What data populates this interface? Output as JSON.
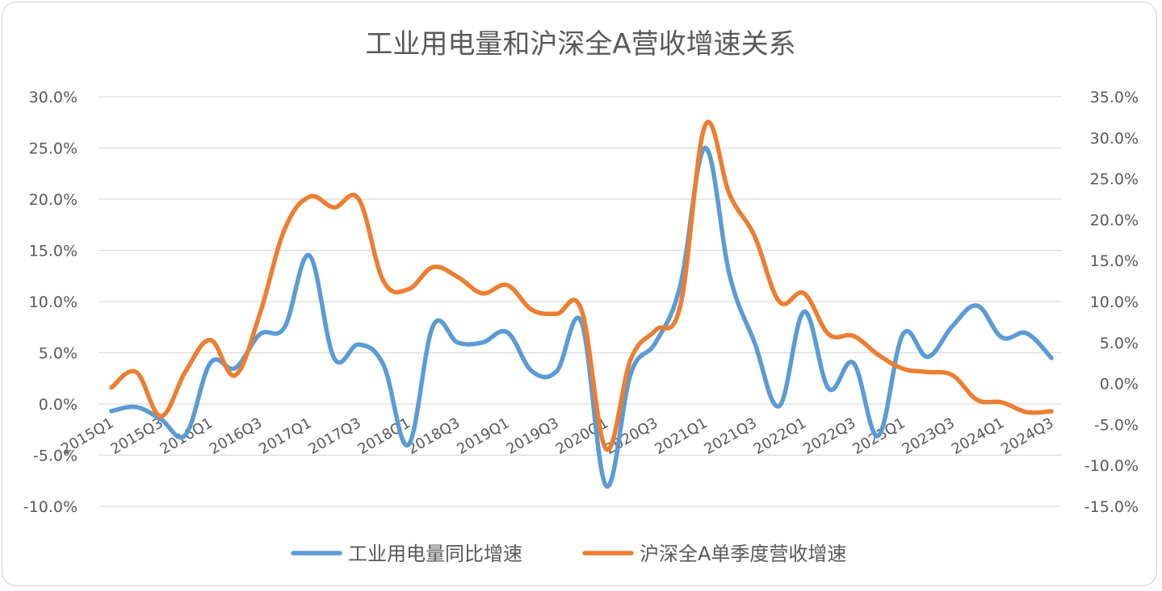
{
  "chart_data": {
    "type": "line",
    "title": "工业用电量和沪深全A营收增速关系",
    "categories": [
      "2015Q1",
      "2015Q2",
      "2015Q3",
      "2015Q4",
      "2016Q1",
      "2016Q2",
      "2016Q3",
      "2016Q4",
      "2017Q1",
      "2017Q2",
      "2017Q3",
      "2017Q4",
      "2018Q1",
      "2018Q2",
      "2018Q3",
      "2018Q4",
      "2019Q1",
      "2019Q2",
      "2019Q3",
      "2019Q4",
      "2020Q1",
      "2020Q2",
      "2020Q3",
      "2020Q4",
      "2021Q1",
      "2021Q2",
      "2021Q3",
      "2021Q4",
      "2022Q1",
      "2022Q2",
      "2022Q3",
      "2022Q4",
      "2023Q1",
      "2023Q2",
      "2023Q3",
      "2023Q4",
      "2024Q1",
      "2024Q2",
      "2024Q3"
    ],
    "x_tick_labels": [
      "2015Q1",
      "2015Q3",
      "2016Q1",
      "2016Q3",
      "2017Q1",
      "2017Q3",
      "2018Q1",
      "2018Q3",
      "2019Q1",
      "2019Q3",
      "2020Q1",
      "2020Q3",
      "2021Q1",
      "2021Q3",
      "2022Q1",
      "2022Q3",
      "2023Q1",
      "2023Q3",
      "2024Q1",
      "2024Q3"
    ],
    "series": [
      {
        "name": "工业用电量同比增速",
        "axis": "left",
        "color": "#5b9bd5",
        "values": [
          -0.7,
          -0.3,
          -1.5,
          -3.0,
          4.0,
          3.5,
          6.8,
          7.5,
          14.5,
          4.5,
          5.8,
          3.8,
          -4.0,
          7.6,
          6.0,
          6.0,
          7.0,
          3.2,
          3.2,
          8.0,
          -8.0,
          3.0,
          6.0,
          11.6,
          25.0,
          12.5,
          6.0,
          -0.2,
          9.0,
          1.5,
          4.0,
          -3.1,
          6.8,
          4.6,
          7.6,
          9.6,
          6.5,
          6.9,
          4.5
        ]
      },
      {
        "name": "沪深全A单季度营收增速",
        "axis": "right",
        "color": "#ed7d31",
        "values": [
          -0.5,
          1.4,
          -4.0,
          1.5,
          5.3,
          1.0,
          8.5,
          18.8,
          22.8,
          21.5,
          22.5,
          12.5,
          11.5,
          14.2,
          13.0,
          11.0,
          12.0,
          9.0,
          8.5,
          9.0,
          -8.0,
          3.0,
          6.5,
          9.5,
          31.5,
          23.0,
          18.0,
          10.0,
          11.0,
          6.0,
          5.8,
          3.5,
          1.8,
          1.4,
          1.0,
          -2.0,
          -2.3,
          -3.5,
          -3.4
        ]
      }
    ],
    "y_left": {
      "min": -10,
      "max": 30,
      "step": 5,
      "tick_labels": [
        "-10.0%",
        "-5.0%",
        "0.0%",
        "5.0%",
        "10.0%",
        "15.0%",
        "20.0%",
        "25.0%",
        "30.0%"
      ]
    },
    "y_right": {
      "min": -15,
      "max": 35,
      "step": 5,
      "tick_labels": [
        "-15.0%",
        "-10.0%",
        "-5.0%",
        "0.0%",
        "5.0%",
        "10.0%",
        "15.0%",
        "20.0%",
        "25.0%",
        "30.0%",
        "35.0%"
      ]
    },
    "grid": true,
    "legend_position": "bottom"
  }
}
